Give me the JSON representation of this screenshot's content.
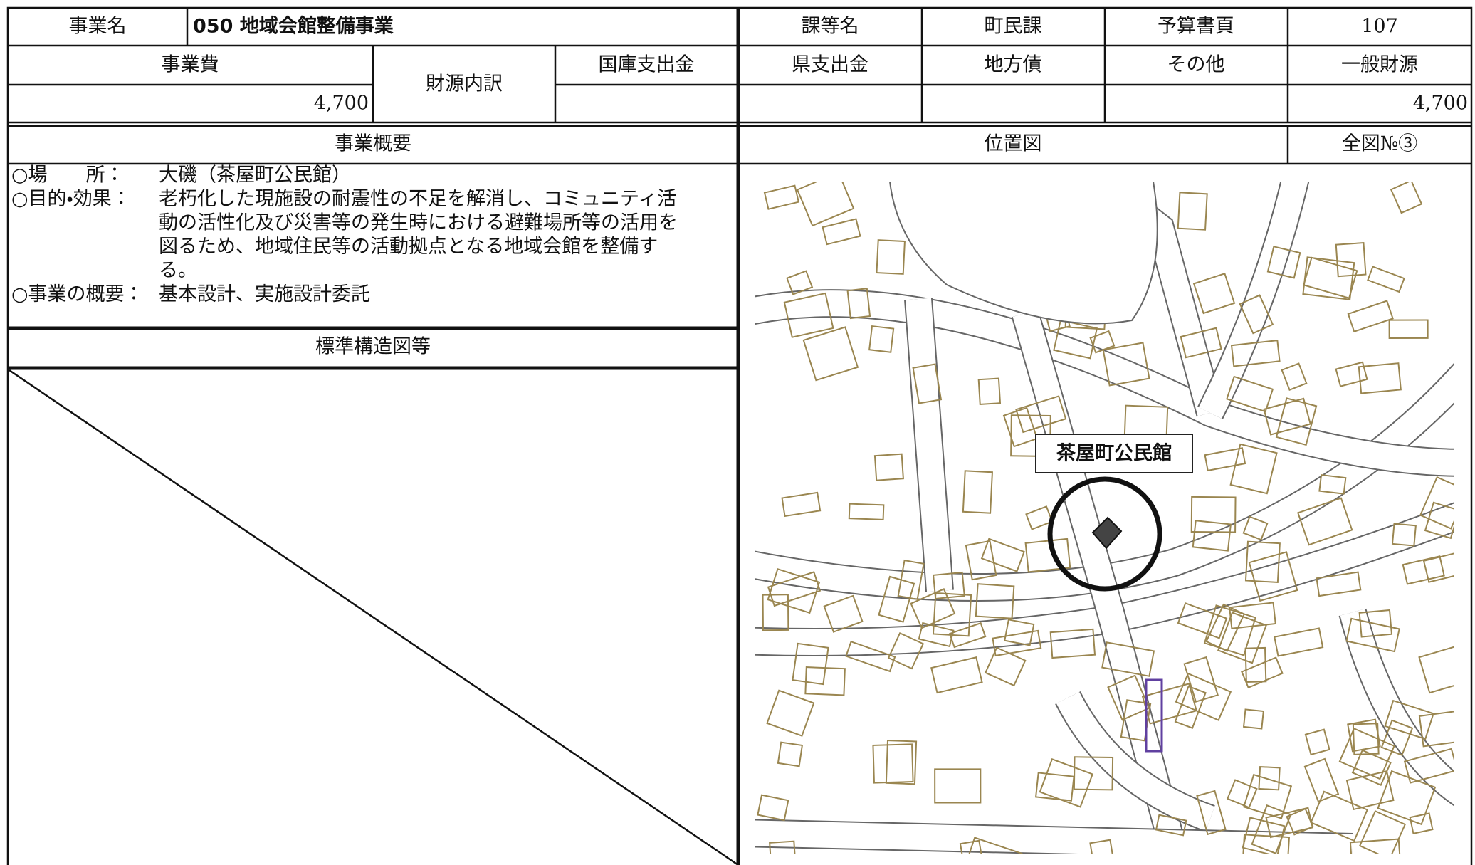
{
  "header": {
    "name_label": "事業名",
    "name": "050 地域会館整備事業",
    "dept_label": "課等名",
    "dept": "町民課",
    "page_label": "予算書頁",
    "page": "107"
  },
  "cost": {
    "label": "事業費",
    "value": "4,700"
  },
  "funding": {
    "label": "財源内訳",
    "columns": [
      "国庫支出金",
      "県支出金",
      "地方債",
      "その他",
      "一般財源"
    ],
    "general_value": "4,700"
  },
  "overview": {
    "title": "事業概要",
    "items": [
      {
        "label": "○場　　所：",
        "lines": [
          "大磯（茶屋町公民館）"
        ]
      },
      {
        "label": "○目的・効果：",
        "lines": [
          "老朽化した現施設の耐震性の不足を解消し、コミュニティ活",
          "動の活性化及び災害等の発生時における避難場所等の活用を",
          "図るため、地域住民等の活動拠点となる地域会館を整備す",
          "る。"
        ]
      },
      {
        "label": "○事業の概要：",
        "lines": [
          "基本設計、実施設計委託"
        ]
      }
    ]
  },
  "structure": {
    "title": "標準構造図等"
  },
  "location": {
    "title": "位置図",
    "map_ref": "全図№③",
    "marker_label": "茶屋町公民館"
  }
}
